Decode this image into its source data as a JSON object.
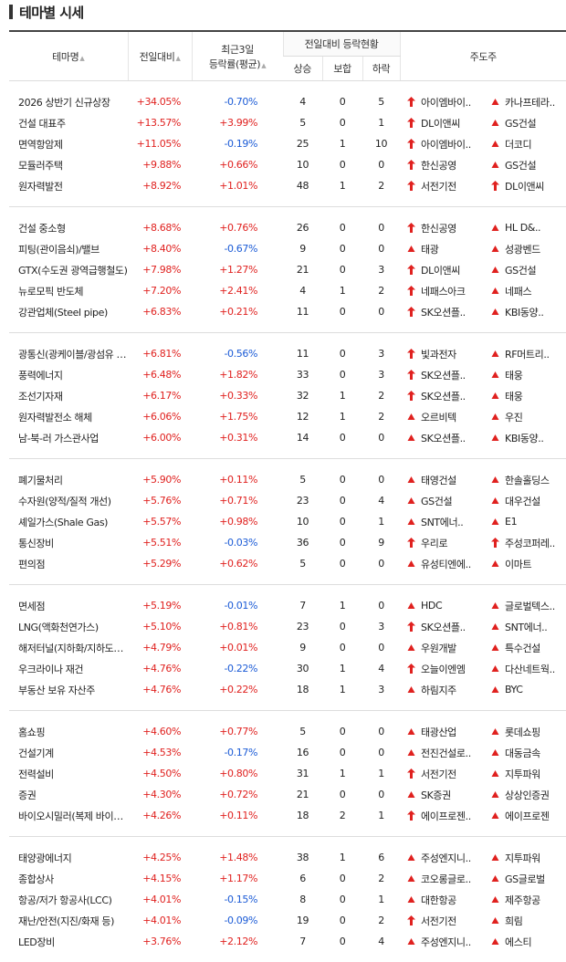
{
  "header": {
    "title": "테마별 시세"
  },
  "table": {
    "columns": {
      "name": "테마명",
      "change": "전일대비",
      "change3d": [
        "최근3일",
        "등락률(평균)"
      ],
      "breadth": "전일대비 등락현황",
      "up": "상승",
      "flat": "보합",
      "down": "하락",
      "leaders": "주도주"
    },
    "groups": [
      [
        {
          "name": "2026 상반기 신규상장",
          "change": "+34.05%",
          "change3d": "-0.70%",
          "up": "4",
          "flat": "0",
          "down": "5",
          "leaders": [
            {
              "name": "아이엠바이..",
              "up_limit": true
            },
            {
              "name": "카나프테라..",
              "up_limit": false
            }
          ]
        },
        {
          "name": "건설 대표주",
          "change": "+13.57%",
          "change3d": "+3.99%",
          "up": "5",
          "flat": "0",
          "down": "1",
          "leaders": [
            {
              "name": "DL이앤씨",
              "up_limit": true
            },
            {
              "name": "GS건설",
              "up_limit": false
            }
          ]
        },
        {
          "name": "면역항암제",
          "change": "+11.05%",
          "change3d": "-0.19%",
          "up": "25",
          "flat": "1",
          "down": "10",
          "leaders": [
            {
              "name": "아이엠바이..",
              "up_limit": true
            },
            {
              "name": "더코디",
              "up_limit": false
            }
          ]
        },
        {
          "name": "모듈러주택",
          "change": "+9.88%",
          "change3d": "+0.66%",
          "up": "10",
          "flat": "0",
          "down": "0",
          "leaders": [
            {
              "name": "한신공영",
              "up_limit": true
            },
            {
              "name": "GS건설",
              "up_limit": false
            }
          ]
        },
        {
          "name": "원자력발전",
          "change": "+8.92%",
          "change3d": "+1.01%",
          "up": "48",
          "flat": "1",
          "down": "2",
          "leaders": [
            {
              "name": "서전기전",
              "up_limit": true
            },
            {
              "name": "DL이앤씨",
              "up_limit": true
            }
          ]
        }
      ],
      [
        {
          "name": "건설 중소형",
          "change": "+8.68%",
          "change3d": "+0.76%",
          "up": "26",
          "flat": "0",
          "down": "0",
          "leaders": [
            {
              "name": "한신공영",
              "up_limit": true
            },
            {
              "name": "HL D&..",
              "up_limit": false
            }
          ]
        },
        {
          "name": "피팅(관이음쇠)/밸브",
          "change": "+8.40%",
          "change3d": "-0.67%",
          "up": "9",
          "flat": "0",
          "down": "0",
          "leaders": [
            {
              "name": "태광",
              "up_limit": false
            },
            {
              "name": "성광벤드",
              "up_limit": false
            }
          ]
        },
        {
          "name": "GTX(수도권 광역급행철도)",
          "change": "+7.98%",
          "change3d": "+1.27%",
          "up": "21",
          "flat": "0",
          "down": "3",
          "leaders": [
            {
              "name": "DL이앤씨",
              "up_limit": true
            },
            {
              "name": "GS건설",
              "up_limit": false
            }
          ]
        },
        {
          "name": "뉴로모픽 반도체",
          "change": "+7.20%",
          "change3d": "+2.41%",
          "up": "4",
          "flat": "1",
          "down": "2",
          "leaders": [
            {
              "name": "네패스아크",
              "up_limit": true
            },
            {
              "name": "네패스",
              "up_limit": false
            }
          ]
        },
        {
          "name": "강관업체(Steel pipe)",
          "change": "+6.83%",
          "change3d": "+0.21%",
          "up": "11",
          "flat": "0",
          "down": "0",
          "leaders": [
            {
              "name": "SK오션플..",
              "up_limit": true
            },
            {
              "name": "KBI동양..",
              "up_limit": false
            }
          ]
        }
      ],
      [
        {
          "name": "광통신(광케이블/광섬유 등)",
          "change": "+6.81%",
          "change3d": "-0.56%",
          "up": "11",
          "flat": "0",
          "down": "3",
          "leaders": [
            {
              "name": "빛과전자",
              "up_limit": true
            },
            {
              "name": "RF머트리..",
              "up_limit": false
            }
          ]
        },
        {
          "name": "풍력에너지",
          "change": "+6.48%",
          "change3d": "+1.82%",
          "up": "33",
          "flat": "0",
          "down": "3",
          "leaders": [
            {
              "name": "SK오션플..",
              "up_limit": true
            },
            {
              "name": "태웅",
              "up_limit": false
            }
          ]
        },
        {
          "name": "조선기자재",
          "change": "+6.17%",
          "change3d": "+0.33%",
          "up": "32",
          "flat": "1",
          "down": "2",
          "leaders": [
            {
              "name": "SK오션플..",
              "up_limit": true
            },
            {
              "name": "태웅",
              "up_limit": false
            }
          ]
        },
        {
          "name": "원자력발전소 해체",
          "change": "+6.06%",
          "change3d": "+1.75%",
          "up": "12",
          "flat": "1",
          "down": "2",
          "leaders": [
            {
              "name": "오르비텍",
              "up_limit": false
            },
            {
              "name": "우진",
              "up_limit": false
            }
          ]
        },
        {
          "name": "남-북-러 가스관사업",
          "change": "+6.00%",
          "change3d": "+0.31%",
          "up": "14",
          "flat": "0",
          "down": "0",
          "leaders": [
            {
              "name": "SK오션플..",
              "up_limit": false
            },
            {
              "name": "KBI동양..",
              "up_limit": false
            }
          ]
        }
      ],
      [
        {
          "name": "폐기물처리",
          "change": "+5.90%",
          "change3d": "+0.11%",
          "up": "5",
          "flat": "0",
          "down": "0",
          "leaders": [
            {
              "name": "태영건설",
              "up_limit": false
            },
            {
              "name": "한솔홀딩스",
              "up_limit": false
            }
          ]
        },
        {
          "name": "수자원(양적/질적 개선)",
          "change": "+5.76%",
          "change3d": "+0.71%",
          "up": "23",
          "flat": "0",
          "down": "4",
          "leaders": [
            {
              "name": "GS건설",
              "up_limit": false
            },
            {
              "name": "대우건설",
              "up_limit": false
            }
          ]
        },
        {
          "name": "셰일가스(Shale Gas)",
          "change": "+5.57%",
          "change3d": "+0.98%",
          "up": "10",
          "flat": "0",
          "down": "1",
          "leaders": [
            {
              "name": "SNT에너..",
              "up_limit": false
            },
            {
              "name": "E1",
              "up_limit": false
            }
          ]
        },
        {
          "name": "통신장비",
          "change": "+5.51%",
          "change3d": "-0.03%",
          "up": "36",
          "flat": "0",
          "down": "9",
          "leaders": [
            {
              "name": "우리로",
              "up_limit": true
            },
            {
              "name": "주성코퍼레..",
              "up_limit": true
            }
          ]
        },
        {
          "name": "편의점",
          "change": "+5.29%",
          "change3d": "+0.62%",
          "up": "5",
          "flat": "0",
          "down": "0",
          "leaders": [
            {
              "name": "유성티엔에..",
              "up_limit": false
            },
            {
              "name": "이마트",
              "up_limit": false
            }
          ]
        }
      ],
      [
        {
          "name": "면세점",
          "change": "+5.19%",
          "change3d": "-0.01%",
          "up": "7",
          "flat": "1",
          "down": "0",
          "leaders": [
            {
              "name": "HDC",
              "up_limit": false
            },
            {
              "name": "글로벌텍스..",
              "up_limit": false
            }
          ]
        },
        {
          "name": "LNG(액화천연가스)",
          "change": "+5.10%",
          "change3d": "+0.81%",
          "up": "23",
          "flat": "0",
          "down": "3",
          "leaders": [
            {
              "name": "SK오션플..",
              "up_limit": true
            },
            {
              "name": "SNT에너..",
              "up_limit": false
            }
          ]
        },
        {
          "name": "해저터널(지하화/지하도로 ...",
          "change": "+4.79%",
          "change3d": "+0.01%",
          "up": "9",
          "flat": "0",
          "down": "0",
          "leaders": [
            {
              "name": "우원개발",
              "up_limit": false
            },
            {
              "name": "특수건설",
              "up_limit": false
            }
          ]
        },
        {
          "name": "우크라이나 재건",
          "change": "+4.76%",
          "change3d": "-0.22%",
          "up": "30",
          "flat": "1",
          "down": "4",
          "leaders": [
            {
              "name": "오늘이엔엠",
              "up_limit": true
            },
            {
              "name": "다산네트웍..",
              "up_limit": false
            }
          ]
        },
        {
          "name": "부동산 보유 자산주",
          "change": "+4.76%",
          "change3d": "+0.22%",
          "up": "18",
          "flat": "1",
          "down": "3",
          "leaders": [
            {
              "name": "하림지주",
              "up_limit": false
            },
            {
              "name": "BYC",
              "up_limit": false
            }
          ]
        }
      ],
      [
        {
          "name": "홈쇼핑",
          "change": "+4.60%",
          "change3d": "+0.77%",
          "up": "5",
          "flat": "0",
          "down": "0",
          "leaders": [
            {
              "name": "태광산업",
              "up_limit": false
            },
            {
              "name": "롯데쇼핑",
              "up_limit": false
            }
          ]
        },
        {
          "name": "건설기계",
          "change": "+4.53%",
          "change3d": "-0.17%",
          "up": "16",
          "flat": "0",
          "down": "0",
          "leaders": [
            {
              "name": "전진건설로..",
              "up_limit": false
            },
            {
              "name": "대동금속",
              "up_limit": false
            }
          ]
        },
        {
          "name": "전력설비",
          "change": "+4.50%",
          "change3d": "+0.80%",
          "up": "31",
          "flat": "1",
          "down": "1",
          "leaders": [
            {
              "name": "서전기전",
              "up_limit": true
            },
            {
              "name": "지투파워",
              "up_limit": false
            }
          ]
        },
        {
          "name": "증권",
          "change": "+4.30%",
          "change3d": "+0.72%",
          "up": "21",
          "flat": "0",
          "down": "0",
          "leaders": [
            {
              "name": "SK증권",
              "up_limit": false
            },
            {
              "name": "상상인증권",
              "up_limit": false
            }
          ]
        },
        {
          "name": "바이오시밀러(복제 바이오...",
          "change": "+4.26%",
          "change3d": "+0.11%",
          "up": "18",
          "flat": "2",
          "down": "1",
          "leaders": [
            {
              "name": "에이프로젠..",
              "up_limit": true
            },
            {
              "name": "에이프로젠",
              "up_limit": false
            }
          ]
        }
      ],
      [
        {
          "name": "태양광에너지",
          "change": "+4.25%",
          "change3d": "+1.48%",
          "up": "38",
          "flat": "1",
          "down": "6",
          "leaders": [
            {
              "name": "주성엔지니..",
              "up_limit": false
            },
            {
              "name": "지투파워",
              "up_limit": false
            }
          ]
        },
        {
          "name": "종합상사",
          "change": "+4.15%",
          "change3d": "+1.17%",
          "up": "6",
          "flat": "0",
          "down": "2",
          "leaders": [
            {
              "name": "코오롱글로..",
              "up_limit": false
            },
            {
              "name": "GS글로벌",
              "up_limit": false
            }
          ]
        },
        {
          "name": "항공/저가 항공사(LCC)",
          "change": "+4.01%",
          "change3d": "-0.15%",
          "up": "8",
          "flat": "0",
          "down": "1",
          "leaders": [
            {
              "name": "대한항공",
              "up_limit": false
            },
            {
              "name": "제주항공",
              "up_limit": false
            }
          ]
        },
        {
          "name": "재난/안전(지진/화재 등)",
          "change": "+4.01%",
          "change3d": "-0.09%",
          "up": "19",
          "flat": "0",
          "down": "2",
          "leaders": [
            {
              "name": "서전기전",
              "up_limit": true
            },
            {
              "name": "희림",
              "up_limit": false
            }
          ]
        },
        {
          "name": "LED장비",
          "change": "+3.76%",
          "change3d": "+2.12%",
          "up": "7",
          "flat": "0",
          "down": "4",
          "leaders": [
            {
              "name": "주성엔지니..",
              "up_limit": false
            },
            {
              "name": "에스티",
              "up_limit": false
            }
          ]
        }
      ]
    ]
  }
}
